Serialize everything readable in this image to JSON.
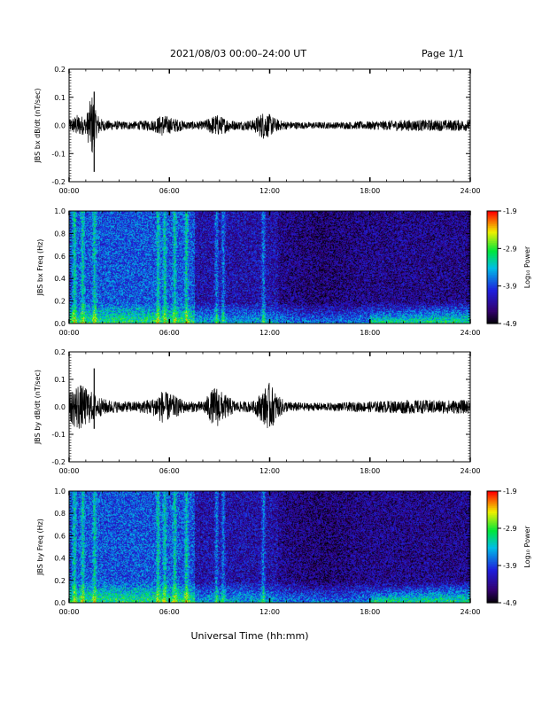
{
  "header": {
    "title": "2021/08/03  00:00–24:00 UT",
    "page": "Page 1/1"
  },
  "xaxis": {
    "label": "Universal Time (hh:mm)",
    "ticks": [
      "00:00",
      "06:00",
      "12:00",
      "18:00",
      "24:00"
    ],
    "range_hours": [
      0,
      24
    ]
  },
  "colors": {
    "trace": "#000000",
    "spectrogram_low": "#000000",
    "spectrogram_high": "#ff0000"
  },
  "chart_data": [
    {
      "type": "line",
      "ylabel": "JBS bx dB/dt (nT/sec)",
      "ylim": [
        -0.2,
        0.2
      ],
      "yticks": [
        "-0.2",
        "-0.1",
        "0.0",
        "0.1",
        "0.2"
      ],
      "envelope_hours": [
        0,
        0.5,
        1,
        1.4,
        1.6,
        2,
        3,
        4,
        5,
        5.6,
        6,
        7,
        8,
        8.8,
        9.2,
        10,
        11,
        11.6,
        12,
        12.5,
        13,
        14,
        16,
        18,
        20,
        22,
        24
      ],
      "envelope_amp": [
        0.02,
        0.04,
        0.03,
        0.12,
        0.05,
        0.02,
        0.015,
        0.015,
        0.02,
        0.04,
        0.03,
        0.015,
        0.015,
        0.04,
        0.03,
        0.015,
        0.02,
        0.05,
        0.04,
        0.02,
        0.015,
        0.012,
        0.012,
        0.015,
        0.02,
        0.02,
        0.02
      ],
      "spikes": [
        {
          "hour": 1.5,
          "max": 0.12,
          "min": -0.165
        }
      ]
    },
    {
      "type": "heatmap",
      "ylabel": "JBS bx Freq (Hz)",
      "ylim": [
        0.0,
        1.0
      ],
      "yticks": [
        "0.0",
        "0.2",
        "0.4",
        "0.6",
        "0.8",
        "1.0"
      ],
      "colorbar": {
        "label": "Log₁₀ Power",
        "ticks": [
          "-1.9",
          "-2.9",
          "-3.9",
          "-4.9"
        ],
        "range": [
          -4.9,
          -1.9
        ]
      },
      "bright_bands_hours": [
        0.3,
        0.8,
        1.5,
        5.3,
        5.7,
        6.3,
        7.0,
        8.8,
        9.2,
        11.6
      ],
      "quiet_start_hour": 12.5,
      "rising_low_freq_after_hour": 18
    },
    {
      "type": "line",
      "ylabel": "JBS by dB/dt (nT/sec)",
      "ylim": [
        -0.2,
        0.2
      ],
      "yticks": [
        "-0.2",
        "-0.1",
        "0.0",
        "0.1",
        "0.2"
      ],
      "envelope_hours": [
        0,
        0.5,
        1,
        1.5,
        2,
        3,
        4,
        5,
        5.5,
        6,
        7,
        8,
        8.8,
        9.2,
        10,
        11,
        11.6,
        12,
        12.5,
        13,
        14,
        16,
        18,
        20,
        22,
        24
      ],
      "envelope_amp": [
        0.05,
        0.09,
        0.07,
        0.05,
        0.03,
        0.02,
        0.02,
        0.03,
        0.06,
        0.05,
        0.02,
        0.02,
        0.08,
        0.05,
        0.02,
        0.02,
        0.06,
        0.09,
        0.04,
        0.02,
        0.015,
        0.015,
        0.02,
        0.025,
        0.025,
        0.025
      ],
      "spikes": [
        {
          "hour": 1.5,
          "max": 0.14,
          "min": -0.08
        }
      ]
    },
    {
      "type": "heatmap",
      "ylabel": "JBS by Freq (Hz)",
      "ylim": [
        0.0,
        1.0
      ],
      "yticks": [
        "0.0",
        "0.2",
        "0.4",
        "0.6",
        "0.8",
        "1.0"
      ],
      "colorbar": {
        "label": "Log₁₀ Power",
        "ticks": [
          "-1.9",
          "-2.9",
          "-3.9",
          "-4.9"
        ],
        "range": [
          -4.9,
          -1.9
        ]
      },
      "bright_bands_hours": [
        0.3,
        0.8,
        1.5,
        5.3,
        5.7,
        6.3,
        7.0,
        8.8,
        9.2,
        11.6
      ],
      "quiet_start_hour": 12.5,
      "rising_low_freq_after_hour": 18
    }
  ]
}
